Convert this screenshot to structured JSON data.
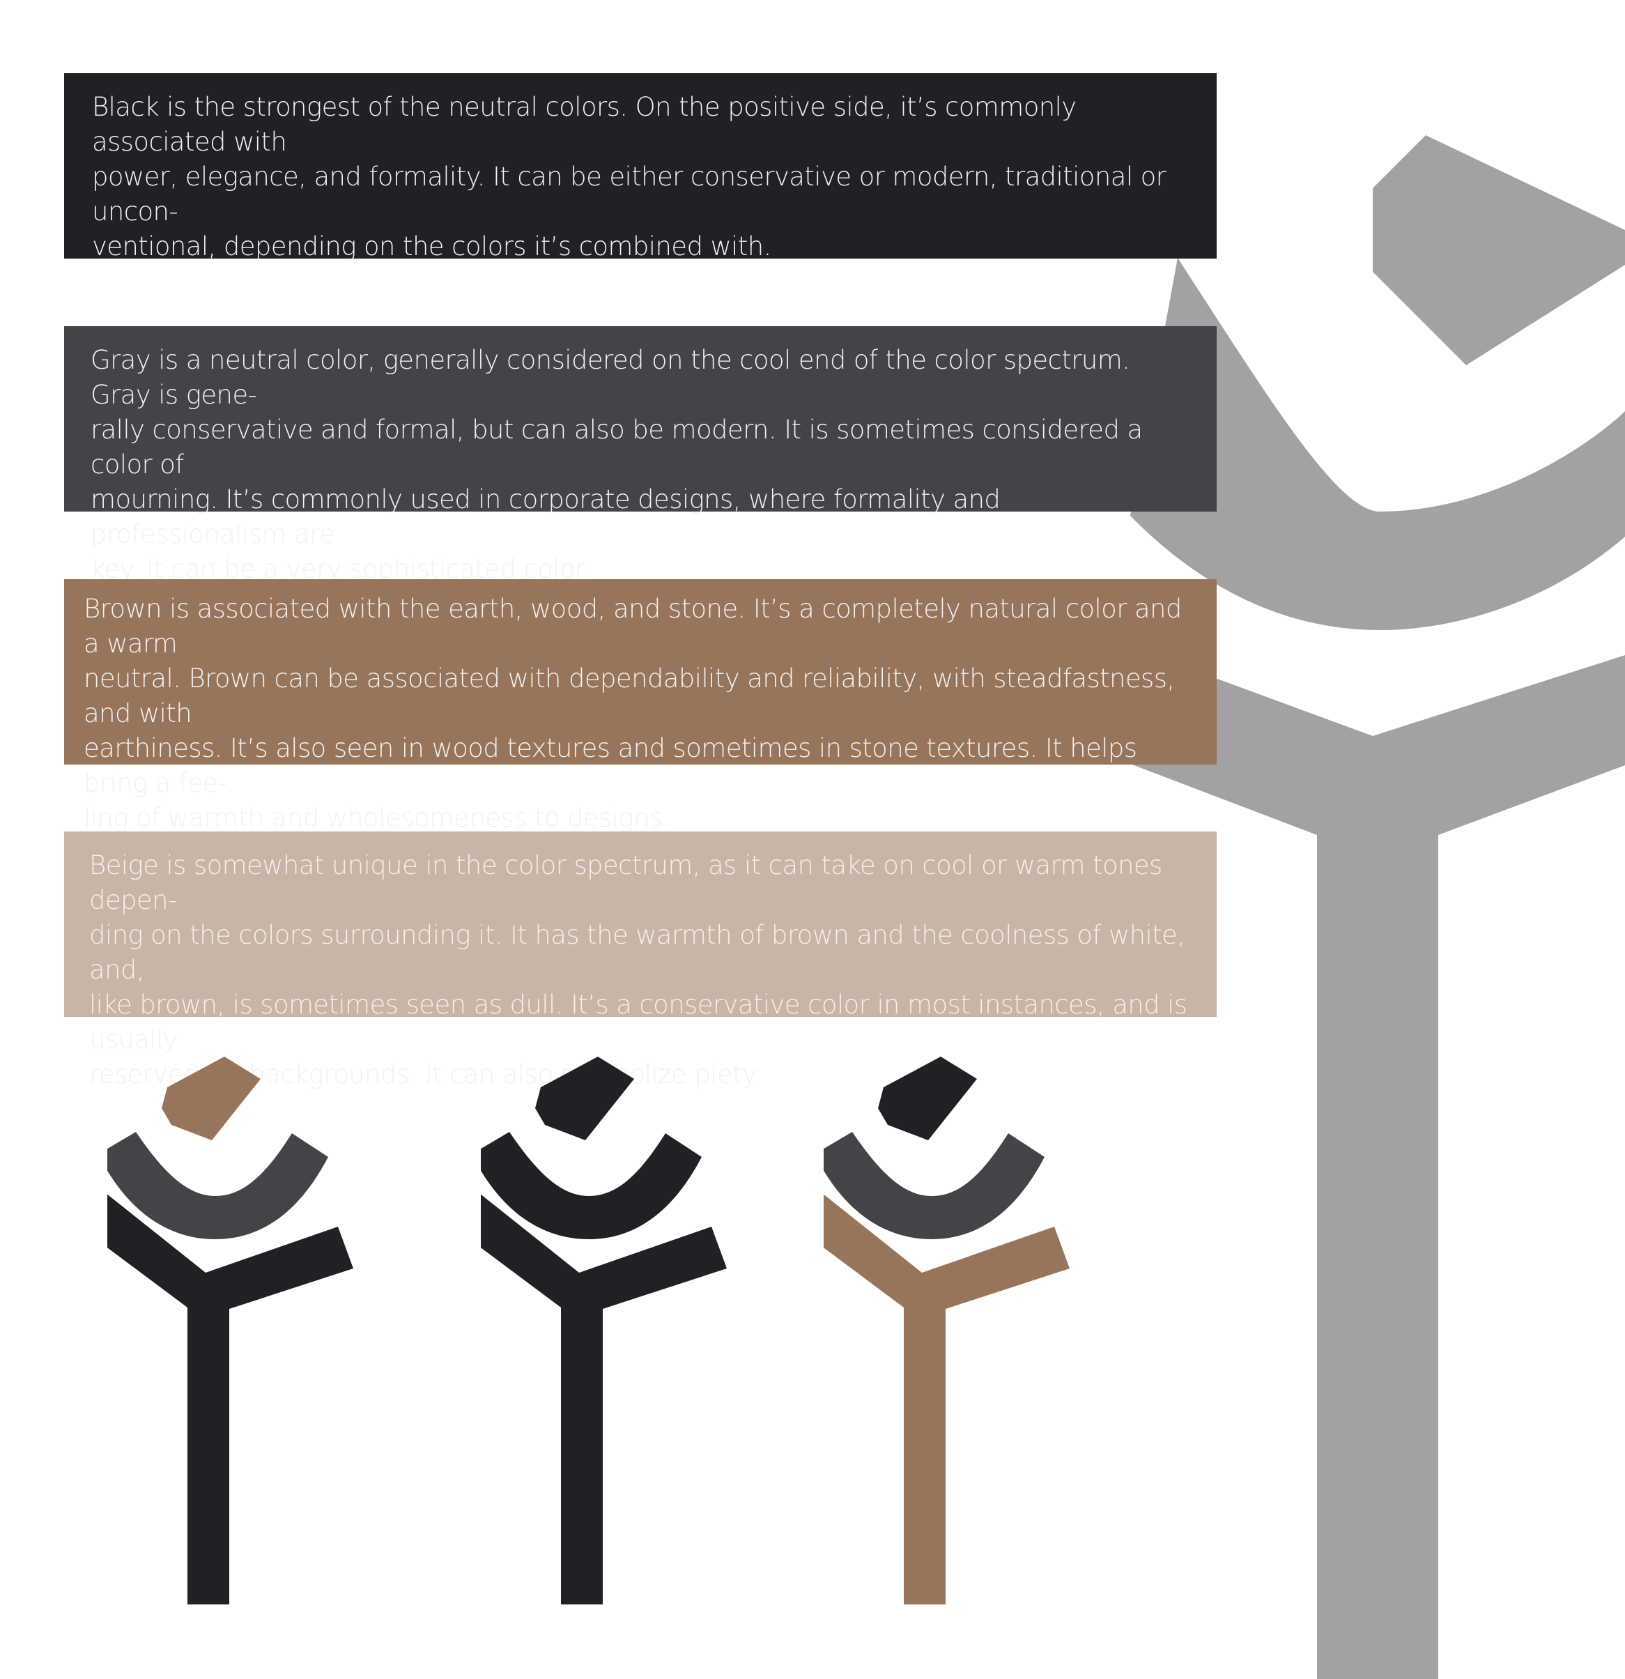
{
  "colors": {
    "black": "#212024",
    "gray": "#444347",
    "brown": "#97755b",
    "beige": "#c8b5a6",
    "light_gray": "#a2a2a4",
    "background": "#ffffff"
  },
  "panels": {
    "black": {
      "text": "Black is the strongest of the neutral colors. On the positive side, it’s commonly associated with\npower, elegance, and formality.  It can be either conservative or modern, traditional or uncon-\nventional, depending on the colors it’s combined with."
    },
    "gray": {
      "text": "Gray is a neutral color, generally considered on the cool end of the color spectrum. Gray is gene-\nrally conservative and formal, but can also be modern. It is sometimes considered a color of\nmourning. It’s commonly used in corporate designs, where formality and professionalism are\nkey. It can be a very sophisticated color."
    },
    "brown": {
      "text": "Brown is associated with the earth, wood, and stone. It’s a completely natural color and a warm\nneutral. Brown can be associated with dependability and reliability, with steadfastness, and with\nearthiness. It’s also seen in wood textures and sometimes in stone textures. It helps bring a fee-\nling of warmth and wholesomeness to designs."
    },
    "beige": {
      "text": "Beige is somewhat unique in the color spectrum, as it can take on cool or warm tones depen-\nding on the colors surrounding it. It has the warmth of brown and the coolness of white, and,\nlike brown, is sometimes seen as dull. It’s a conservative color in most instances, and is usually\nreserved for backgrounds. It can also symbolize piety."
    }
  },
  "logo_variants": [
    {
      "dash_color": "#97755b",
      "arc_color": "#444347",
      "y_color": "#212024"
    },
    {
      "dash_color": "#212024",
      "arc_color": "#212024",
      "y_color": "#212024"
    },
    {
      "dash_color": "#212024",
      "arc_color": "#444347",
      "y_color": "#97755b"
    }
  ]
}
